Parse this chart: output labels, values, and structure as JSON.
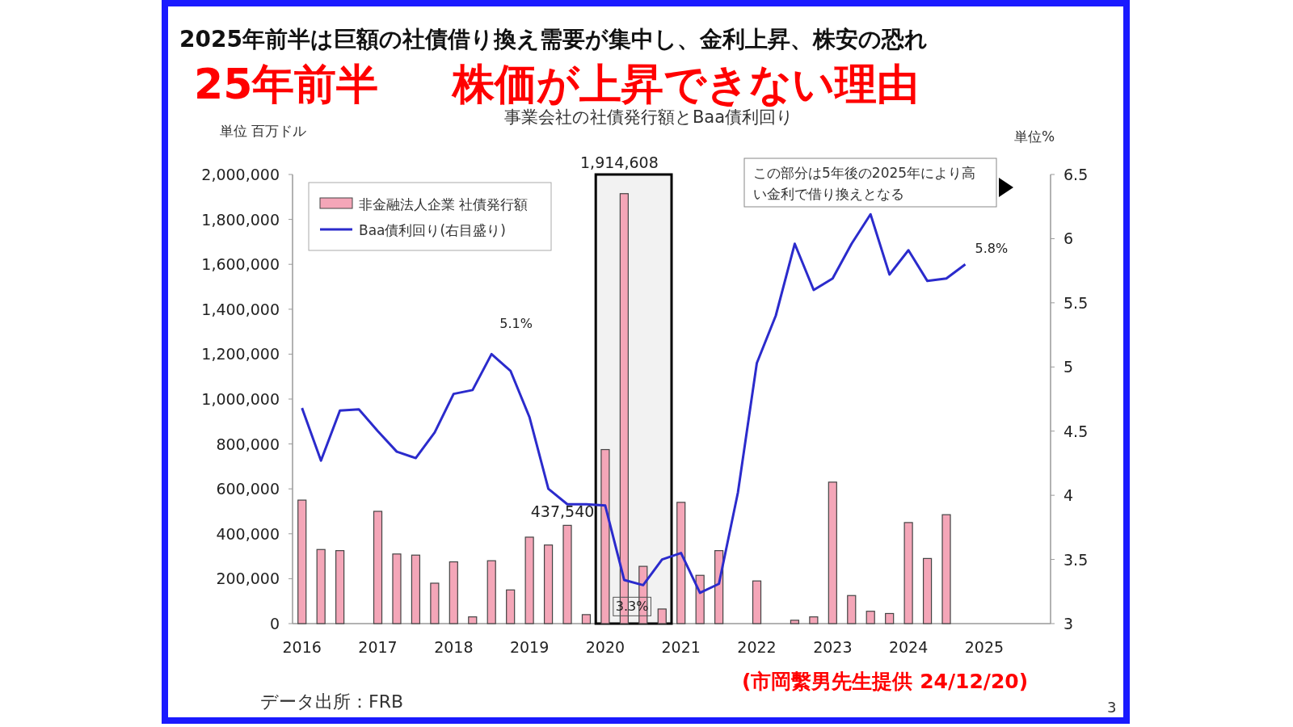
{
  "chart_data": {
    "type": "bar",
    "title": "2025年前半は巨額の社債借り換え需要が集中し、金利上昇、株安の恐れ",
    "subtitle": "事業会社の社債発行額とBaa債利回り",
    "ylabel": "単位 百万ドル",
    "y2label": "単位%",
    "x": [
      2016,
      2016.25,
      2016.5,
      2016.75,
      2017,
      2017.25,
      2017.5,
      2017.75,
      2018,
      2018.25,
      2018.5,
      2018.75,
      2019,
      2019.25,
      2019.5,
      2019.75,
      2020,
      2020.25,
      2020.5,
      2020.75,
      2021,
      2021.25,
      2021.5,
      2021.75,
      2022,
      2022.25,
      2022.5,
      2022.75,
      2023,
      2023.25,
      2023.5,
      2023.75,
      2024,
      2024.25,
      2024.5,
      2024.75
    ],
    "xlim": [
      2015.875,
      2025.875
    ],
    "xticks": [
      2016,
      2017,
      2018,
      2019,
      2020,
      2021,
      2022,
      2023,
      2024,
      2025
    ],
    "ylim": [
      0,
      2000000
    ],
    "yticks": [
      {
        "value": 0,
        "label": "0"
      },
      {
        "value": 200000,
        "label": "200,000"
      },
      {
        "value": 400000,
        "label": "400,000"
      },
      {
        "value": 600000,
        "label": "600,000"
      },
      {
        "value": 800000,
        "label": "800,000"
      },
      {
        "value": 1000000,
        "label": "1,000,000"
      },
      {
        "value": 1200000,
        "label": "1,200,000"
      },
      {
        "value": 1400000,
        "label": "1,400,000"
      },
      {
        "value": 1600000,
        "label": "1,600,000"
      },
      {
        "value": 1800000,
        "label": "1,800,000"
      },
      {
        "value": 2000000,
        "label": "2,000,000"
      }
    ],
    "y2lim": [
      3,
      6.5
    ],
    "y2ticks": [
      3,
      3.5,
      4,
      4.5,
      5,
      5.5,
      6,
      6.5
    ],
    "legend": "top left",
    "series": [
      {
        "name": "非金融法人企業 社債発行額",
        "color": "#f4a6b8",
        "values": [
          550000,
          330000,
          325000,
          null,
          500000,
          310000,
          305000,
          180000,
          275000,
          30000,
          280000,
          150000,
          385000,
          350000,
          437540,
          40000,
          775000,
          1914608,
          255000,
          65000,
          540000,
          215000,
          325000,
          null,
          190000,
          null,
          15000,
          30000,
          630000,
          125000,
          55000,
          45000,
          450000,
          290000,
          485000,
          null
        ],
        "value_labels": [
          null,
          null,
          null,
          null,
          null,
          null,
          null,
          null,
          null,
          null,
          null,
          null,
          null,
          null,
          "437,540",
          null,
          null,
          "1,914,608",
          null,
          null,
          null,
          null,
          null,
          null,
          null,
          null,
          null,
          null,
          null,
          null,
          null,
          null,
          null,
          null,
          null,
          null
        ]
      },
      {
        "name": "Baa債利回り(右目盛り)",
        "type": "line",
        "axis": "y2",
        "color": "#2b2bcc",
        "values": [
          4.68,
          4.27,
          4.66,
          4.67,
          4.5,
          4.34,
          4.29,
          4.49,
          4.79,
          4.82,
          5.1,
          4.97,
          4.61,
          4.05,
          3.93,
          3.93,
          3.92,
          3.34,
          3.3,
          3.5,
          3.55,
          3.24,
          3.31,
          4.02,
          5.03,
          5.4,
          5.96,
          5.6,
          5.69,
          5.96,
          6.19,
          5.72,
          5.91,
          5.67,
          5.69,
          5.8
        ],
        "value_labels": [
          null,
          null,
          null,
          null,
          null,
          null,
          null,
          null,
          null,
          null,
          "5.1%",
          null,
          null,
          null,
          null,
          null,
          null,
          null,
          "3.3%",
          null,
          null,
          null,
          null,
          null,
          null,
          null,
          null,
          null,
          null,
          null,
          null,
          null,
          null,
          null,
          null,
          "5.8%"
        ]
      }
    ],
    "bands": [
      {
        "axis": "x",
        "from": 2019.875,
        "to": 2020.875,
        "color": "#000000"
      }
    ],
    "annotations": [
      "この部分は5年後の2025年により高い金利で借り換えとなる",
      "25年前半",
      "株価が上昇できない理由",
      "データ出所：FRB",
      "(市岡繫男先生提供 24/12/20)",
      "3"
    ]
  }
}
